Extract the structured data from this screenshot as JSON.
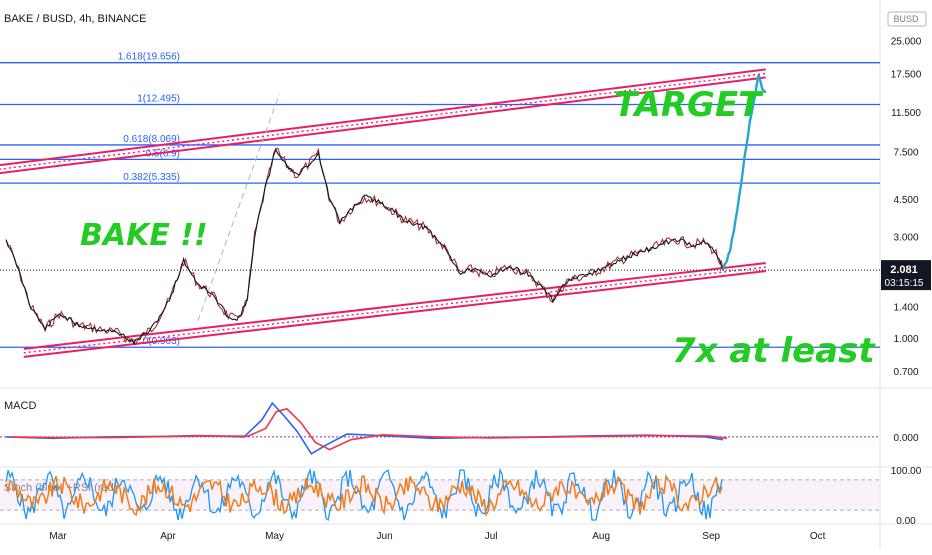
{
  "header": {
    "symbol": "BAKE / BUSD, 4h, BINANCE",
    "currency": "BUSD"
  },
  "price_tag": {
    "price": "2.081",
    "countdown": "03:15:15"
  },
  "colors": {
    "price_line": "#131722",
    "projection": "#26a6d1",
    "channel": "#e91e63",
    "fib": "#2962ff",
    "annotation": "#22cc22",
    "macd": "#2962ff",
    "signal": "#f23645",
    "stoch": "#2196f3",
    "rsi": "#ef7d1e"
  },
  "chart_data": [
    {
      "type": "line",
      "name": "price",
      "x": [
        "Mar",
        "Apr",
        "May",
        "Jun",
        "Jul",
        "Aug",
        "Sep",
        "Oct"
      ],
      "y_scale": "log",
      "y_ticks": [
        "25.000",
        "17.500",
        "11.500",
        "7.500",
        "4.500",
        "3.000",
        "2.000",
        "1.400",
        "1.000",
        "0.700"
      ],
      "y_tick_values": [
        25,
        17.5,
        11.5,
        7.5,
        4.5,
        3.0,
        2.0,
        1.4,
        1.0,
        0.7
      ],
      "ylim": [
        0.6,
        28
      ],
      "series": [
        {
          "name": "",
          "points": [
            [
              "2021-02-20",
              2.9
            ],
            [
              "2021-02-23",
              2.2
            ],
            [
              "2021-02-27",
              1.4
            ],
            [
              "2021-03-03",
              1.1
            ],
            [
              "2021-03-07",
              1.3
            ],
            [
              "2021-03-12",
              1.15
            ],
            [
              "2021-03-18",
              1.1
            ],
            [
              "2021-03-24",
              1.05
            ],
            [
              "2021-03-28",
              0.95
            ],
            [
              "2021-04-02",
              1.1
            ],
            [
              "2021-04-07",
              1.5
            ],
            [
              "2021-04-11",
              2.3
            ],
            [
              "2021-04-15",
              1.8
            ],
            [
              "2021-04-19",
              1.6
            ],
            [
              "2021-04-23",
              1.3
            ],
            [
              "2021-04-26",
              1.2
            ],
            [
              "2021-04-29",
              1.5
            ],
            [
              "2021-05-01",
              3.0
            ],
            [
              "2021-05-04",
              5.0
            ],
            [
              "2021-05-07",
              7.7
            ],
            [
              "2021-05-10",
              6.5
            ],
            [
              "2021-05-13",
              5.8
            ],
            [
              "2021-05-16",
              6.5
            ],
            [
              "2021-05-19",
              7.3
            ],
            [
              "2021-05-22",
              4.6
            ],
            [
              "2021-05-25",
              3.5
            ],
            [
              "2021-05-28",
              4.0
            ],
            [
              "2021-06-01",
              4.6
            ],
            [
              "2021-06-06",
              4.3
            ],
            [
              "2021-06-12",
              3.6
            ],
            [
              "2021-06-18",
              3.3
            ],
            [
              "2021-06-24",
              2.6
            ],
            [
              "2021-06-28",
              2.0
            ],
            [
              "2021-07-01",
              2.1
            ],
            [
              "2021-07-06",
              1.95
            ],
            [
              "2021-07-11",
              2.15
            ],
            [
              "2021-07-16",
              2.05
            ],
            [
              "2021-07-20",
              1.8
            ],
            [
              "2021-07-24",
              1.5
            ],
            [
              "2021-07-28",
              1.85
            ],
            [
              "2021-08-02",
              1.95
            ],
            [
              "2021-08-08",
              2.15
            ],
            [
              "2021-08-14",
              2.4
            ],
            [
              "2021-08-20",
              2.6
            ],
            [
              "2021-08-25",
              2.8
            ],
            [
              "2021-08-28",
              2.9
            ],
            [
              "2021-09-01",
              2.75
            ],
            [
              "2021-09-05",
              2.8
            ],
            [
              "2021-09-08",
              2.5
            ],
            [
              "2021-09-10",
              2.08
            ]
          ]
        },
        {
          "name": "",
          "points": [
            [
              "2021-09-10",
              2.08
            ],
            [
              "2021-09-12",
              2.6
            ],
            [
              "2021-09-14",
              4.0
            ],
            [
              "2021-09-16",
              7.0
            ],
            [
              "2021-09-17",
              9.0
            ],
            [
              "2021-09-18",
              11.5
            ],
            [
              "2021-09-19",
              14.0
            ],
            [
              "2021-09-20",
              17.0
            ],
            [
              "2021-09-21",
              15.0
            ],
            [
              "2021-09-22",
              14.2
            ]
          ]
        }
      ],
      "fib_levels": [
        {
          "label": "1.618(19.656)",
          "value": 19.656
        },
        {
          "label": "1(12.495)",
          "value": 12.495
        },
        {
          "label": "0.618(8.069)",
          "value": 8.069
        },
        {
          "label": "0.5(6.9)",
          "value": 6.9
        },
        {
          "label": "0.382(5.335)",
          "value": 5.335
        },
        {
          "label": "0(0.903)",
          "value": 0.903
        }
      ],
      "channel": {
        "upper": [
          [
            "2021-02-18",
            6.2
          ],
          [
            "2021-09-22",
            17.5
          ]
        ],
        "lower": [
          [
            "2021-02-25",
            0.85
          ],
          [
            "2021-09-22",
            2.15
          ]
        ]
      },
      "annotations": [
        "BAKE !!",
        "TARGET",
        "7x at least"
      ]
    },
    {
      "type": "line",
      "name": "MACD",
      "title": "MACD",
      "y_ticks": [
        "0.000"
      ],
      "ylim": [
        -1.0,
        1.6
      ],
      "series": [
        {
          "name": "",
          "points": [
            [
              "2021-02-20",
              0.0
            ],
            [
              "2021-03-05",
              -0.05
            ],
            [
              "2021-03-20",
              0.0
            ],
            [
              "2021-04-05",
              0.02
            ],
            [
              "2021-04-15",
              0.05
            ],
            [
              "2021-04-28",
              0.0
            ],
            [
              "2021-05-03",
              0.6
            ],
            [
              "2021-05-06",
              1.2
            ],
            [
              "2021-05-09",
              0.8
            ],
            [
              "2021-05-13",
              0.2
            ],
            [
              "2021-05-17",
              -0.6
            ],
            [
              "2021-05-21",
              -0.3
            ],
            [
              "2021-05-27",
              0.1
            ],
            [
              "2021-06-05",
              0.05
            ],
            [
              "2021-06-20",
              -0.05
            ],
            [
              "2021-07-05",
              -0.02
            ],
            [
              "2021-07-20",
              0.0
            ],
            [
              "2021-08-05",
              0.04
            ],
            [
              "2021-08-20",
              0.06
            ],
            [
              "2021-09-05",
              0.0
            ],
            [
              "2021-09-10",
              -0.1
            ]
          ]
        }
      ]
    },
    {
      "type": "line",
      "name": "Stoch RSI",
      "title": "Stoch (blue) +RSI (red)",
      "y_ticks": [
        "100.00",
        "0.00"
      ],
      "ylim": [
        0,
        100
      ],
      "series": [
        {
          "name": "blue",
          "points": []
        },
        {
          "name": "red",
          "points": []
        }
      ]
    }
  ]
}
